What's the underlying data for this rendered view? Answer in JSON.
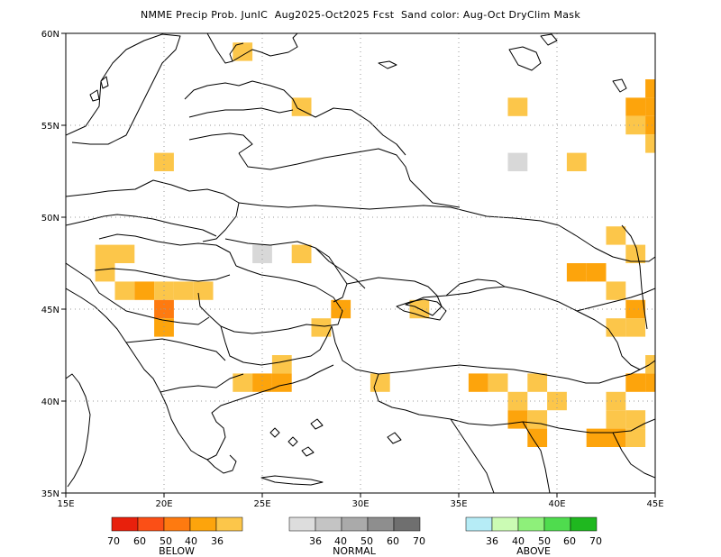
{
  "title": "NMME Precip Prob. JunIC  Aug2025-Oct2025 Fcst  Sand color: Aug-Oct DryClim Mask",
  "axes": {
    "lat_labels": [
      "60N",
      "55N",
      "50N",
      "45N",
      "40N",
      "35N"
    ],
    "lon_labels": [
      "15E",
      "20E",
      "25E",
      "30E",
      "35E",
      "40E",
      "45E"
    ]
  },
  "legend": {
    "below": {
      "label": "BELOW",
      "colors": [
        "#e8200c",
        "#fb4f16",
        "#fe7a10",
        "#fda40c",
        "#fcc64a"
      ],
      "ticks": [
        "70",
        "60",
        "50",
        "40",
        "36"
      ]
    },
    "normal": {
      "label": "NORMAL",
      "colors": [
        "#dddddd",
        "#c4c4c4",
        "#aaaaaa",
        "#8e8e8e",
        "#6f6f6f"
      ],
      "ticks": [
        "36",
        "40",
        "50",
        "60",
        "70"
      ]
    },
    "above": {
      "label": "ABOVE",
      "colors": [
        "#b6ecf6",
        "#cbfbb4",
        "#8ef07a",
        "#4fdc4e",
        "#1fb81f"
      ],
      "ticks": [
        "36",
        "40",
        "50",
        "60",
        "70"
      ]
    }
  },
  "map_data": {
    "projection": "lat-lon",
    "lon_range": [
      15,
      45
    ],
    "lat_range": [
      35,
      60
    ],
    "cell_size_deg": 1,
    "category_colors": {
      "B36": "#fcc64a",
      "B40": "#fda40c",
      "B50": "#fe7a10",
      "N36": "#d8d8d8"
    },
    "cells": [
      [
        24,
        59,
        "B36"
      ],
      [
        27,
        56,
        "B36"
      ],
      [
        38,
        56,
        "B36"
      ],
      [
        44,
        56,
        "B40"
      ],
      [
        45,
        56,
        "B40"
      ],
      [
        44,
        55,
        "B36"
      ],
      [
        45,
        55,
        "B40"
      ],
      [
        45,
        54,
        "B36"
      ],
      [
        45,
        57,
        "B40"
      ],
      [
        20,
        53,
        "B36"
      ],
      [
        38,
        53,
        "N36"
      ],
      [
        41,
        53,
        "B36"
      ],
      [
        43,
        49,
        "B36"
      ],
      [
        17,
        48,
        "B36"
      ],
      [
        18,
        48,
        "B36"
      ],
      [
        17,
        47,
        "B36"
      ],
      [
        25,
        48,
        "N36"
      ],
      [
        27,
        48,
        "B36"
      ],
      [
        44,
        48,
        "B36"
      ],
      [
        41,
        47,
        "B40"
      ],
      [
        42,
        47,
        "B40"
      ],
      [
        18,
        46,
        "B36"
      ],
      [
        19,
        46,
        "B40"
      ],
      [
        20,
        46,
        "B36"
      ],
      [
        21,
        46,
        "B36"
      ],
      [
        22,
        46,
        "B36"
      ],
      [
        20,
        45,
        "B50"
      ],
      [
        20,
        44,
        "B40"
      ],
      [
        43,
        46,
        "B36"
      ],
      [
        29,
        45,
        "B40"
      ],
      [
        28,
        44,
        "B36"
      ],
      [
        33,
        45,
        "B36"
      ],
      [
        44,
        45,
        "B40"
      ],
      [
        43,
        44,
        "B36"
      ],
      [
        44,
        44,
        "B36"
      ],
      [
        26,
        42,
        "B36"
      ],
      [
        24,
        41,
        "B36"
      ],
      [
        25,
        41,
        "B40"
      ],
      [
        26,
        41,
        "B40"
      ],
      [
        31,
        41,
        "B36"
      ],
      [
        36,
        41,
        "B40"
      ],
      [
        37,
        41,
        "B36"
      ],
      [
        39,
        41,
        "B36"
      ],
      [
        44,
        41,
        "B40"
      ],
      [
        45,
        41,
        "B40"
      ],
      [
        45,
        42,
        "B36"
      ],
      [
        38,
        40,
        "B36"
      ],
      [
        40,
        40,
        "B36"
      ],
      [
        43,
        40,
        "B36"
      ],
      [
        38,
        39,
        "B40"
      ],
      [
        39,
        39,
        "B36"
      ],
      [
        43,
        39,
        "B36"
      ],
      [
        44,
        39,
        "B36"
      ],
      [
        39,
        38,
        "B40"
      ],
      [
        42,
        38,
        "B40"
      ],
      [
        43,
        38,
        "B40"
      ],
      [
        44,
        38,
        "B36"
      ]
    ]
  }
}
